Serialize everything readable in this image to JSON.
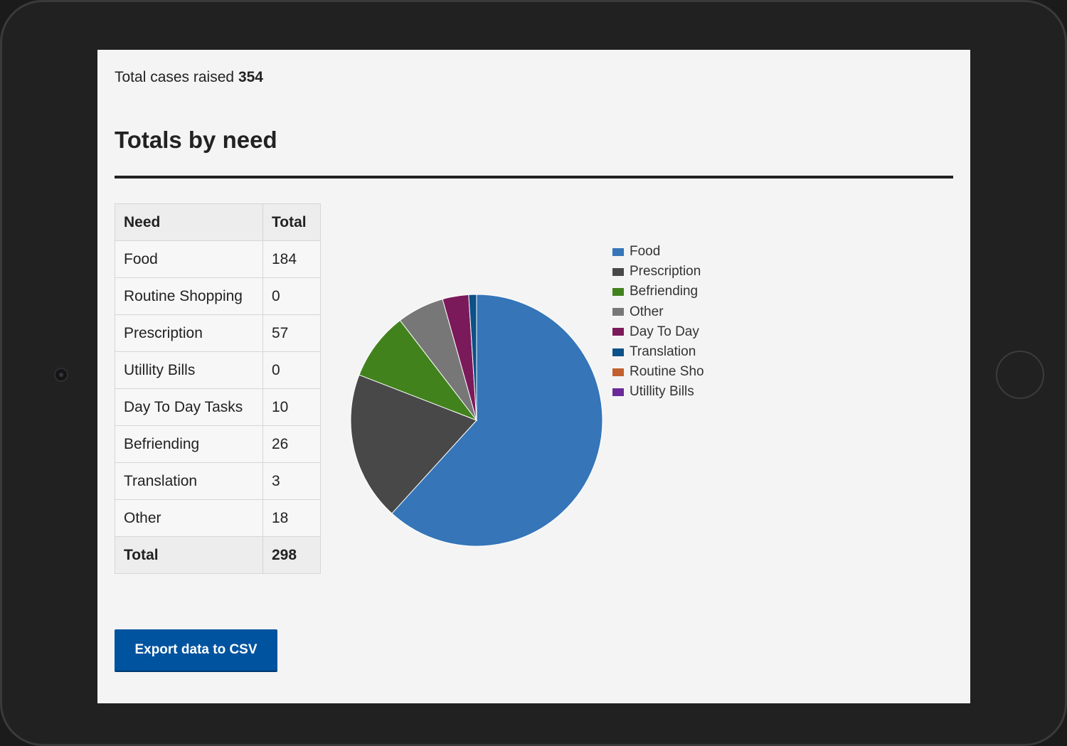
{
  "summary": {
    "total_label": "Total cases raised",
    "total_value": "354"
  },
  "section": {
    "heading": "Totals by need"
  },
  "table": {
    "headers": [
      "Need",
      "Total"
    ],
    "rows": [
      {
        "need": "Food",
        "total": "184"
      },
      {
        "need": "Routine Shopping",
        "total": "0"
      },
      {
        "need": "Prescription",
        "total": "57"
      },
      {
        "need": "Utillity Bills",
        "total": "0"
      },
      {
        "need": "Day To Day Tasks",
        "total": "10"
      },
      {
        "need": "Befriending",
        "total": "26"
      },
      {
        "need": "Translation",
        "total": "3"
      },
      {
        "need": "Other",
        "total": "18"
      }
    ],
    "footer": {
      "need": "Total",
      "total": "298"
    }
  },
  "chart_data": {
    "type": "pie",
    "title": "",
    "slices": [
      {
        "name": "Food",
        "value": 184,
        "color": "#3575b8"
      },
      {
        "name": "Prescription",
        "value": 57,
        "color": "#484848"
      },
      {
        "name": "Befriending",
        "value": 26,
        "color": "#42821d"
      },
      {
        "name": "Other",
        "value": 18,
        "color": "#777777"
      },
      {
        "name": "Day To Day",
        "value": 10,
        "color": "#7b1a5a"
      },
      {
        "name": "Translation",
        "value": 3,
        "color": "#0c5187"
      },
      {
        "name": "Routine Shopping",
        "value": 0,
        "color": "#c2612e"
      },
      {
        "name": "Utillity Bills",
        "value": 0,
        "color": "#6a2a98"
      }
    ],
    "legend": {
      "position": "right",
      "labels": [
        "Food",
        "Prescription",
        "Befriending",
        "Other",
        "Day To Day",
        "Translation",
        "Routine Shopping",
        "Utillity Bills"
      ]
    }
  },
  "actions": {
    "export_label": "Export data to CSV"
  }
}
